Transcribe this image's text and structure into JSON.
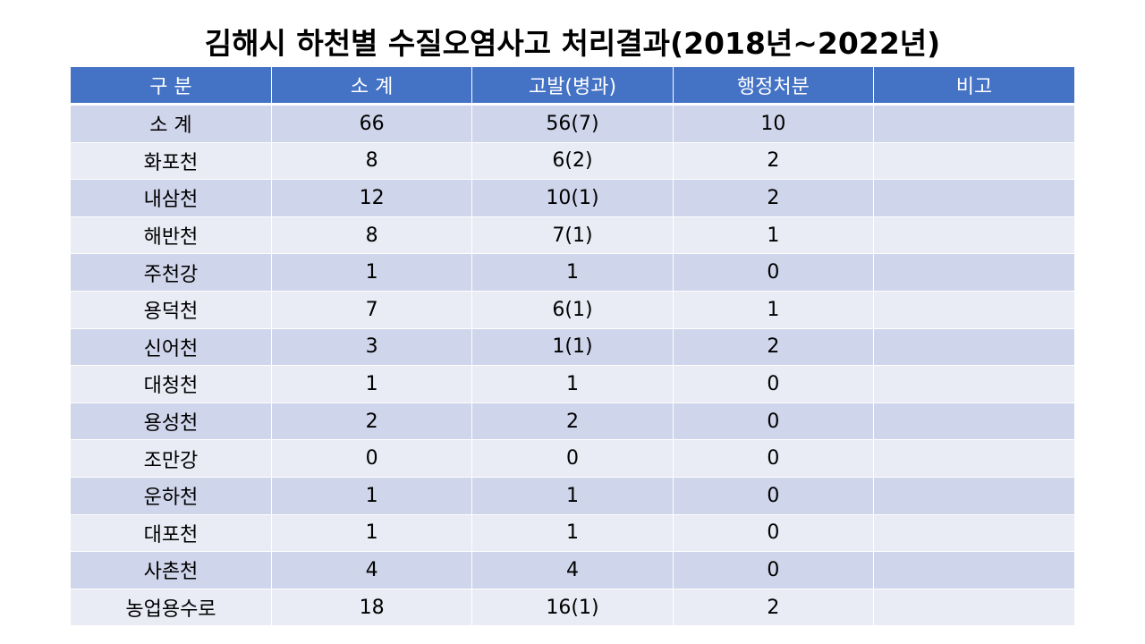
{
  "title": "김해시 하천별 수질오염사고 처리결과(2018년~2022년)",
  "table": {
    "headers": [
      "구 분",
      "소 계",
      "고발(병과)",
      "행정처분",
      "비고"
    ],
    "rows": [
      [
        "소 계",
        "66",
        "56(7)",
        "10",
        ""
      ],
      [
        "화포천",
        "8",
        "6(2)",
        "2",
        ""
      ],
      [
        "내삼천",
        "12",
        "10(1)",
        "2",
        ""
      ],
      [
        "해반천",
        "8",
        "7(1)",
        "1",
        ""
      ],
      [
        "주천강",
        "1",
        "1",
        "0",
        ""
      ],
      [
        "용덕천",
        "7",
        "6(1)",
        "1",
        ""
      ],
      [
        "신어천",
        "3",
        "1(1)",
        "2",
        ""
      ],
      [
        "대청천",
        "1",
        "1",
        "0",
        ""
      ],
      [
        "용성천",
        "2",
        "2",
        "0",
        ""
      ],
      [
        "조만강",
        "0",
        "0",
        "0",
        ""
      ],
      [
        "운하천",
        "1",
        "1",
        "0",
        ""
      ],
      [
        "대포천",
        "1",
        "1",
        "0",
        ""
      ],
      [
        "사촌천",
        "4",
        "4",
        "0",
        ""
      ],
      [
        "농업용수로",
        "18",
        "16(1)",
        "2",
        ""
      ]
    ]
  },
  "colors": {
    "header_bg": "#4472c4",
    "row_odd": "#cfd5ea",
    "row_even": "#e9ebf5"
  }
}
